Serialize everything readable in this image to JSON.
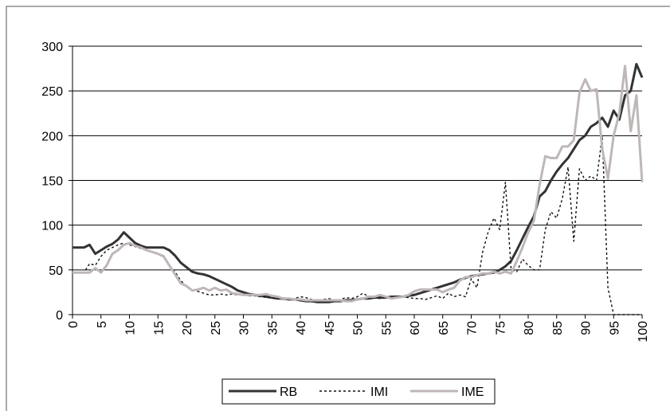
{
  "chart_data": {
    "type": "line",
    "x": [
      0,
      1,
      2,
      3,
      4,
      5,
      6,
      7,
      8,
      9,
      10,
      11,
      12,
      13,
      14,
      15,
      16,
      17,
      18,
      19,
      20,
      21,
      22,
      23,
      24,
      25,
      26,
      27,
      28,
      29,
      30,
      31,
      32,
      33,
      34,
      35,
      36,
      37,
      38,
      39,
      40,
      41,
      42,
      43,
      44,
      45,
      46,
      47,
      48,
      49,
      50,
      51,
      52,
      53,
      54,
      55,
      56,
      57,
      58,
      59,
      60,
      61,
      62,
      63,
      64,
      65,
      66,
      67,
      68,
      69,
      70,
      71,
      72,
      73,
      74,
      75,
      76,
      77,
      78,
      79,
      80,
      81,
      82,
      83,
      84,
      85,
      86,
      87,
      88,
      89,
      90,
      91,
      92,
      93,
      94,
      95,
      96,
      97,
      98,
      99,
      100
    ],
    "series": [
      {
        "name": "RB",
        "color": "#333333",
        "line_style": "solid",
        "values": [
          75,
          75,
          75,
          78,
          68,
          72,
          76,
          79,
          84,
          92,
          86,
          80,
          77,
          75,
          75,
          75,
          75,
          72,
          66,
          58,
          53,
          48,
          46,
          45,
          43,
          40,
          37,
          34,
          31,
          27,
          25,
          23,
          22,
          21,
          20,
          19,
          18,
          18,
          17,
          17,
          16,
          15,
          15,
          14,
          14,
          14,
          15,
          15,
          16,
          16,
          17,
          18,
          18,
          19,
          19,
          19,
          20,
          20,
          20,
          21,
          22,
          24,
          26,
          28,
          30,
          32,
          34,
          36,
          39,
          41,
          43,
          44,
          45,
          46,
          47,
          50,
          54,
          60,
          72,
          85,
          98,
          110,
          132,
          138,
          150,
          160,
          168,
          175,
          185,
          195,
          200,
          210,
          214,
          220,
          210,
          228,
          218,
          245,
          250,
          280,
          265
        ]
      },
      {
        "name": "IMI",
        "color": "#111111",
        "line_style": "dashed",
        "values": [
          47,
          47,
          47,
          57,
          55,
          65,
          72,
          75,
          78,
          80,
          78,
          76,
          74,
          72,
          70,
          68,
          66,
          55,
          48,
          38,
          32,
          28,
          26,
          24,
          22,
          22,
          23,
          22,
          23,
          22,
          22,
          21,
          21,
          20,
          20,
          19,
          18,
          17,
          17,
          18,
          20,
          19,
          17,
          15,
          17,
          18,
          16,
          17,
          19,
          18,
          20,
          24,
          20,
          19,
          18,
          19,
          18,
          20,
          20,
          19,
          18,
          18,
          17,
          19,
          21,
          18,
          24,
          20,
          22,
          20,
          40,
          30,
          70,
          93,
          108,
          95,
          148,
          50,
          48,
          62,
          55,
          50,
          50,
          95,
          115,
          108,
          130,
          165,
          82,
          163,
          150,
          155,
          150,
          200,
          30,
          0,
          0,
          0,
          0,
          0,
          0
        ]
      },
      {
        "name": "IME",
        "color": "#bfb7b7",
        "line_style": "solid",
        "values": [
          47,
          47,
          47,
          47,
          52,
          47,
          55,
          68,
          72,
          78,
          80,
          77,
          75,
          72,
          70,
          68,
          65,
          55,
          45,
          35,
          32,
          27,
          28,
          30,
          27,
          30,
          27,
          28,
          24,
          23,
          22,
          22,
          22,
          22,
          23,
          21,
          20,
          18,
          18,
          17,
          17,
          16,
          16,
          16,
          16,
          16,
          16,
          16,
          15,
          15,
          17,
          18,
          20,
          20,
          22,
          20,
          18,
          19,
          20,
          22,
          26,
          28,
          28,
          28,
          28,
          25,
          28,
          30,
          38,
          42,
          42,
          44,
          46,
          46,
          48,
          46,
          48,
          46,
          60,
          75,
          92,
          105,
          145,
          177,
          175,
          175,
          188,
          188,
          195,
          248,
          263,
          250,
          252,
          185,
          152,
          200,
          225,
          278,
          205,
          245,
          148
        ]
      }
    ],
    "xlim": [
      0,
      100
    ],
    "xticks": [
      0,
      5,
      10,
      15,
      20,
      25,
      30,
      35,
      40,
      45,
      50,
      55,
      60,
      65,
      70,
      75,
      80,
      85,
      90,
      95,
      100
    ],
    "ylim": [
      0,
      300
    ],
    "yticks": [
      0,
      50,
      100,
      150,
      200,
      250,
      300
    ],
    "grid": true,
    "legend": "bottom"
  }
}
